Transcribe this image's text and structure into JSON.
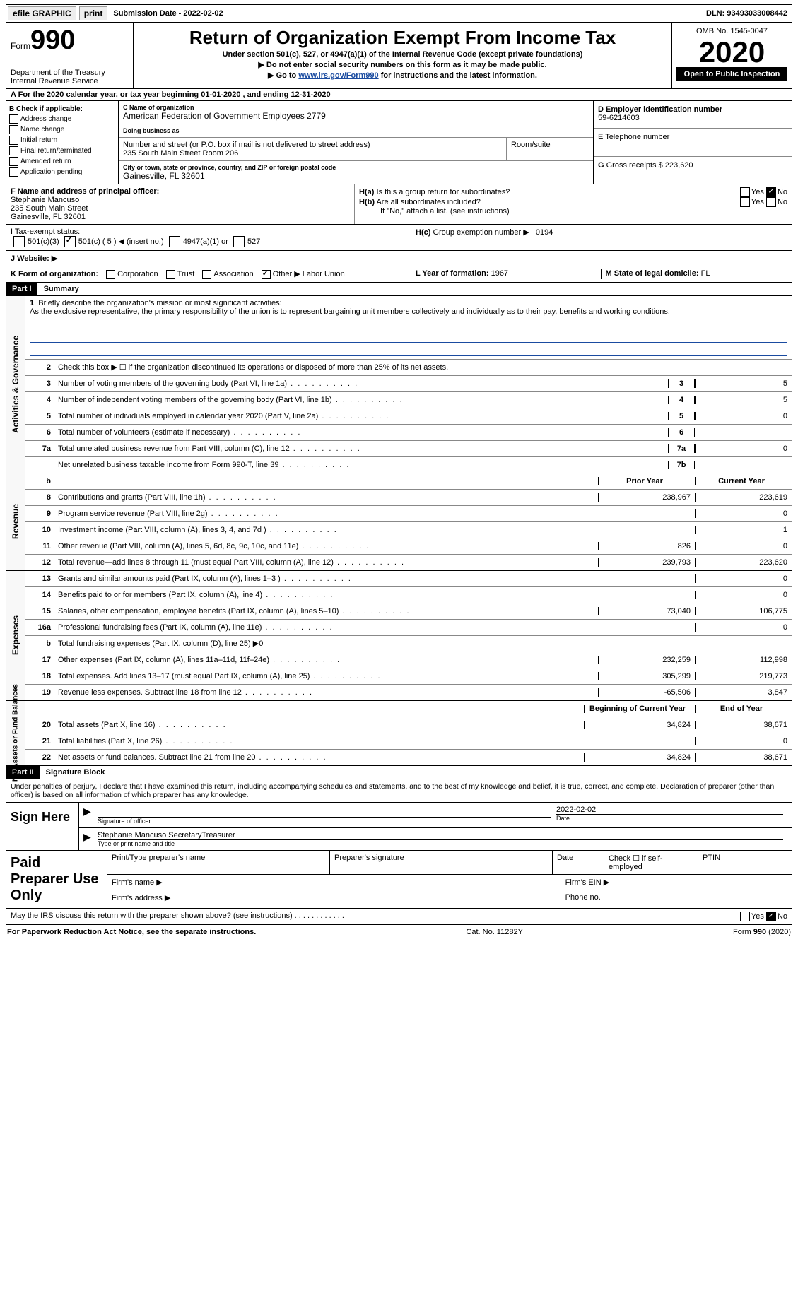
{
  "topbar": {
    "efile": "efile GRAPHIC",
    "print": "print",
    "submission": "Submission Date - 2022-02-02",
    "dln": "DLN: 93493033008442"
  },
  "header": {
    "form_word": "Form",
    "form_num": "990",
    "dept": "Department of the Treasury\nInternal Revenue Service",
    "title": "Return of Organization Exempt From Income Tax",
    "subtitle": "Under section 501(c), 527, or 4947(a)(1) of the Internal Revenue Code (except private foundations)",
    "line1": "▶ Do not enter social security numbers on this form as it may be made public.",
    "line2_pre": "▶ Go to ",
    "line2_link": "www.irs.gov/Form990",
    "line2_post": " for instructions and the latest information.",
    "omb": "OMB No. 1545-0047",
    "year": "2020",
    "open": "Open to Public Inspection"
  },
  "periodA": "For the 2020 calendar year, or tax year beginning 01-01-2020   , and ending 12-31-2020",
  "boxB": {
    "hdr": "B Check if applicable:",
    "opts": [
      "Address change",
      "Name change",
      "Initial return",
      "Final return/terminated",
      "Amended return",
      "Application pending"
    ]
  },
  "boxC": {
    "name_lbl": "C Name of organization",
    "name": "American Federation of Government Employees 2779",
    "dba_lbl": "Doing business as",
    "addr_lbl": "Number and street (or P.O. box if mail is not delivered to street address)",
    "addr": "235 South Main Street Room 206",
    "room_lbl": "Room/suite",
    "city_lbl": "City or town, state or province, country, and ZIP or foreign postal code",
    "city": "Gainesville, FL  32601"
  },
  "boxD": {
    "lbl": "D Employer identification number",
    "val": "59-6214603"
  },
  "boxE": {
    "lbl": "E Telephone number",
    "val": ""
  },
  "boxG": {
    "lbl": "G",
    "text": "Gross receipts $",
    "val": "223,620"
  },
  "boxF": {
    "lbl": "F  Name and address of principal officer:",
    "name": "Stephanie Mancuso",
    "addr1": "235 South Main Street",
    "addr2": "Gainesville, FL  32601"
  },
  "boxH": {
    "a": "Is this a group return for subordinates?",
    "b": "Are all subordinates included?",
    "b_note": "If \"No,\" attach a list. (see instructions)",
    "c": "Group exemption number ▶",
    "c_val": "0194",
    "yes": "Yes",
    "no": "No"
  },
  "taxI": {
    "lbl": "I   Tax-exempt status:",
    "o1": "501(c)(3)",
    "o2": "501(c) ( 5 ) ◀ (insert no.)",
    "o3": "4947(a)(1) or",
    "o4": "527"
  },
  "taxJ": {
    "lbl": "J   Website: ▶",
    "val": ""
  },
  "boxK": {
    "lbl": "K Form of organization:",
    "o1": "Corporation",
    "o2": "Trust",
    "o3": "Association",
    "o4": "Other ▶",
    "o4v": "Labor Union"
  },
  "boxL": {
    "lbl": "L Year of formation:",
    "val": "1967"
  },
  "boxM": {
    "lbl": "M State of legal domicile:",
    "val": "FL"
  },
  "partI": {
    "hdr": "Part I",
    "title": "Summary"
  },
  "gov": {
    "side": "Activities & Governance",
    "l1_lbl": "Briefly describe the organization's mission or most significant activities:",
    "l1_text": "As the exclusive representative, the primary responsibility of the union is to represent bargaining unit members collectively and individually as to their pay, benefits and working conditions.",
    "l2": "Check this box ▶ ☐  if the organization discontinued its operations or disposed of more than 25% of its net assets.",
    "lines": [
      {
        "n": "3",
        "t": "Number of voting members of the governing body (Part VI, line 1a)",
        "c": "3",
        "v": "5"
      },
      {
        "n": "4",
        "t": "Number of independent voting members of the governing body (Part VI, line 1b)",
        "c": "4",
        "v": "5"
      },
      {
        "n": "5",
        "t": "Total number of individuals employed in calendar year 2020 (Part V, line 2a)",
        "c": "5",
        "v": "0"
      },
      {
        "n": "6",
        "t": "Total number of volunteers (estimate if necessary)",
        "c": "6",
        "v": ""
      },
      {
        "n": "7a",
        "t": "Total unrelated business revenue from Part VIII, column (C), line 12",
        "c": "7a",
        "v": "0"
      },
      {
        "n": "",
        "t": "Net unrelated business taxable income from Form 990-T, line 39",
        "c": "7b",
        "v": ""
      }
    ]
  },
  "rev": {
    "side": "Revenue",
    "prior_hdr": "Prior Year",
    "curr_hdr": "Current Year",
    "lines": [
      {
        "n": "8",
        "t": "Contributions and grants (Part VIII, line 1h)",
        "p": "238,967",
        "c": "223,619"
      },
      {
        "n": "9",
        "t": "Program service revenue (Part VIII, line 2g)",
        "p": "",
        "c": "0"
      },
      {
        "n": "10",
        "t": "Investment income (Part VIII, column (A), lines 3, 4, and 7d )",
        "p": "",
        "c": "1"
      },
      {
        "n": "11",
        "t": "Other revenue (Part VIII, column (A), lines 5, 6d, 8c, 9c, 10c, and 11e)",
        "p": "826",
        "c": "0"
      },
      {
        "n": "12",
        "t": "Total revenue—add lines 8 through 11 (must equal Part VIII, column (A), line 12)",
        "p": "239,793",
        "c": "223,620"
      }
    ]
  },
  "exp": {
    "side": "Expenses",
    "lines": [
      {
        "n": "13",
        "t": "Grants and similar amounts paid (Part IX, column (A), lines 1–3 )",
        "p": "",
        "c": "0"
      },
      {
        "n": "14",
        "t": "Benefits paid to or for members (Part IX, column (A), line 4)",
        "p": "",
        "c": "0"
      },
      {
        "n": "15",
        "t": "Salaries, other compensation, employee benefits (Part IX, column (A), lines 5–10)",
        "p": "73,040",
        "c": "106,775"
      },
      {
        "n": "16a",
        "t": "Professional fundraising fees (Part IX, column (A), line 11e)",
        "p": "",
        "c": "0"
      },
      {
        "n": "b",
        "t": "Total fundraising expenses (Part IX, column (D), line 25) ▶0",
        "p": "shade",
        "c": "shade"
      },
      {
        "n": "17",
        "t": "Other expenses (Part IX, column (A), lines 11a–11d, 11f–24e)",
        "p": "232,259",
        "c": "112,998"
      },
      {
        "n": "18",
        "t": "Total expenses. Add lines 13–17 (must equal Part IX, column (A), line 25)",
        "p": "305,299",
        "c": "219,773"
      },
      {
        "n": "19",
        "t": "Revenue less expenses. Subtract line 18 from line 12",
        "p": "-65,506",
        "c": "3,847"
      }
    ]
  },
  "net": {
    "side": "Net Assets or Fund Balances",
    "beg_hdr": "Beginning of Current Year",
    "end_hdr": "End of Year",
    "lines": [
      {
        "n": "20",
        "t": "Total assets (Part X, line 16)",
        "p": "34,824",
        "c": "38,671"
      },
      {
        "n": "21",
        "t": "Total liabilities (Part X, line 26)",
        "p": "",
        "c": "0"
      },
      {
        "n": "22",
        "t": "Net assets or fund balances. Subtract line 21 from line 20",
        "p": "34,824",
        "c": "38,671"
      }
    ]
  },
  "partII": {
    "hdr": "Part II",
    "title": "Signature Block"
  },
  "penalties": "Under penalties of perjury, I declare that I have examined this return, including accompanying schedules and statements, and to the best of my knowledge and belief, it is true, correct, and complete. Declaration of preparer (other than officer) is based on all information of which preparer has any knowledge.",
  "sign": {
    "left": "Sign Here",
    "sig_officer": "Signature of officer",
    "date_lbl": "Date",
    "date": "2022-02-02",
    "name": "Stephanie Mancuso  SecretaryTreasurer",
    "name_lbl": "Type or print name and title"
  },
  "paid": {
    "left": "Paid Preparer Use Only",
    "r1c1": "Print/Type preparer's name",
    "r1c2": "Preparer's signature",
    "r1c3": "Date",
    "r1c4": "Check ☐ if self-employed",
    "r1c5": "PTIN",
    "r2a": "Firm's name   ▶",
    "r2b": "Firm's EIN ▶",
    "r3a": "Firm's address ▶",
    "r3b": "Phone no."
  },
  "may": {
    "text": "May the IRS discuss this return with the preparer shown above? (see instructions)   .   .   .   .   .   .   .   .   .   .   .   .",
    "yes": "Yes",
    "no": "No"
  },
  "footer": {
    "left": "For Paperwork Reduction Act Notice, see the separate instructions.",
    "mid": "Cat. No. 11282Y",
    "right_pre": "Form ",
    "right_form": "990",
    "right_post": " (2020)"
  }
}
